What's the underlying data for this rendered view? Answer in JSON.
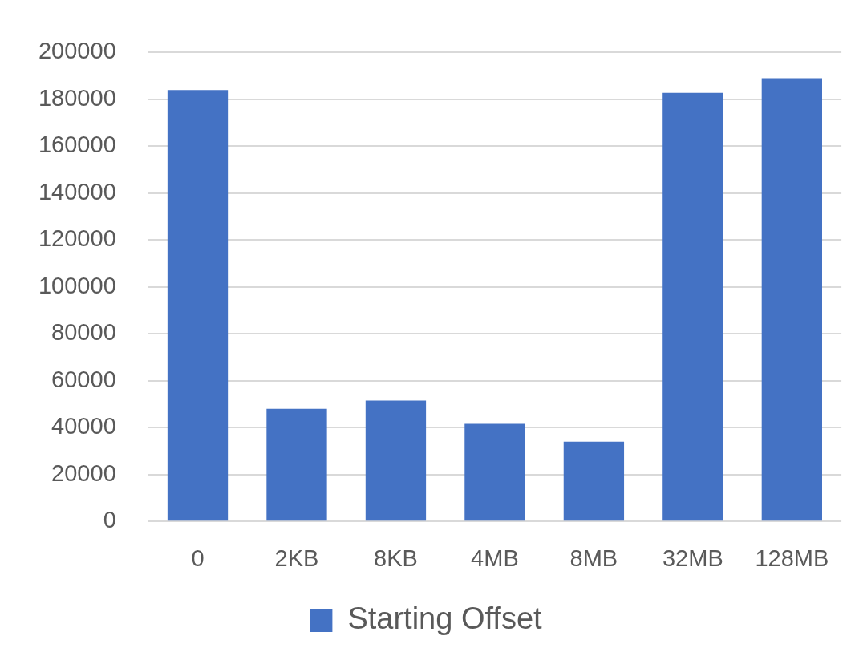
{
  "chart_data": {
    "type": "bar",
    "categories": [
      "0",
      "2KB",
      "8KB",
      "4MB",
      "8MB",
      "32MB",
      "128MB"
    ],
    "series": [
      {
        "name": "Starting Offset",
        "color": "#4472c4",
        "values": [
          184000,
          48000,
          51500,
          41600,
          34000,
          182800,
          189000
        ]
      }
    ],
    "ylim": [
      0,
      200000
    ],
    "yticks": [
      0,
      20000,
      40000,
      60000,
      80000,
      100000,
      120000,
      140000,
      160000,
      180000,
      200000
    ],
    "grid": "y",
    "legend": "bottom"
  }
}
